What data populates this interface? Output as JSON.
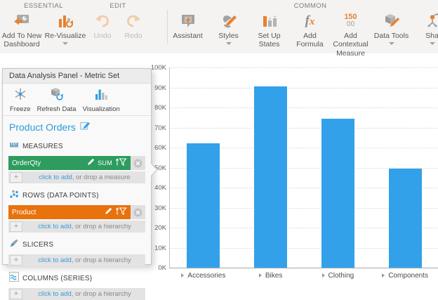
{
  "colors": {
    "accent_orange": "#e8812f",
    "accent_blue": "#2f9fe8",
    "measure_green": "#2d9c5e",
    "dimension_orange": "#e8720c",
    "bar_blue": "#33a0ea",
    "link_blue": "#3a9bd5"
  },
  "ribbon": {
    "groups": [
      {
        "label": "ESSENTIAL",
        "items": [
          {
            "label": "Add To New Dashboard",
            "icon": "add-to-new-dashboard-icon",
            "dropdown": false,
            "disabled": false
          },
          {
            "label": "Re-Visualize",
            "icon": "re-visualize-icon",
            "dropdown": true,
            "disabled": false
          }
        ]
      },
      {
        "label": "EDIT",
        "items": [
          {
            "label": "Undo",
            "icon": "undo-icon",
            "dropdown": false,
            "disabled": true
          },
          {
            "label": "Redo",
            "icon": "redo-icon",
            "dropdown": false,
            "disabled": true
          }
        ]
      },
      {
        "label": "COMMON",
        "items": [
          {
            "label": "Assistant",
            "icon": "assistant-icon",
            "dropdown": false,
            "disabled": false
          },
          {
            "label": "Styles",
            "icon": "styles-icon",
            "dropdown": true,
            "disabled": false
          },
          {
            "label": "Set Up States",
            "icon": "set-up-states-icon",
            "dropdown": false,
            "disabled": false
          },
          {
            "label": "Add Formula",
            "icon": "add-formula-icon",
            "dropdown": false,
            "disabled": false
          },
          {
            "label": "Add Contextual Measure",
            "icon": "add-contextual-measure-icon",
            "dropdown": false,
            "disabled": false
          },
          {
            "label": "Data Tools",
            "icon": "data-tools-icon",
            "dropdown": true,
            "disabled": false
          },
          {
            "label": "Sha",
            "icon": "share-icon",
            "dropdown": true,
            "disabled": false
          }
        ]
      }
    ]
  },
  "panel": {
    "title": "Data Analysis Panel - Metric Set",
    "toolbar": [
      {
        "label": "Freeze",
        "icon": "freeze-icon"
      },
      {
        "label": "Refresh Data",
        "icon": "refresh-data-icon"
      },
      {
        "label": "Visualization",
        "icon": "visualization-icon"
      }
    ],
    "metric_set_name": "Product Orders",
    "sections": [
      {
        "id": "measures",
        "label": "MEASURES",
        "icon": "measures-icon",
        "chip": {
          "name": "OrderQty",
          "aggregate": "SUM",
          "color": "#2d9c5e"
        },
        "add_link": "click to add",
        "add_rest": ", or drop a measure"
      },
      {
        "id": "rows",
        "label": "ROWS (DATA POINTS)",
        "icon": "rows-icon",
        "chip": {
          "name": "Product",
          "aggregate": "",
          "color": "#e8720c"
        },
        "add_link": "click to add",
        "add_rest": ", or drop a hierarchy"
      },
      {
        "id": "slicers",
        "label": "SLICERS",
        "icon": "slicers-icon",
        "chip": null,
        "add_link": "click to add",
        "add_rest": ", or drop a hierarchy"
      },
      {
        "id": "columns",
        "label": "COLUMNS (SERIES)",
        "icon": "columns-icon",
        "chip": null,
        "add_link": "click to add",
        "add_rest": ", or drop a hierarchy"
      }
    ]
  },
  "chart_data": {
    "type": "bar",
    "categories": [
      "Accessories",
      "Bikes",
      "Clothing",
      "Components"
    ],
    "values": [
      62000,
      90500,
      74500,
      49500
    ],
    "title": "",
    "xlabel": "",
    "ylabel": "",
    "ylim": [
      0,
      100000
    ],
    "ytick_step": 10000,
    "ytick_labels": [
      "0K",
      "10K",
      "20K",
      "30K",
      "40K",
      "50K",
      "60K",
      "70K",
      "80K",
      "90K",
      "100K"
    ],
    "bar_color": "#33a0ea",
    "grid": true,
    "legend": false,
    "category_expanders": true
  }
}
